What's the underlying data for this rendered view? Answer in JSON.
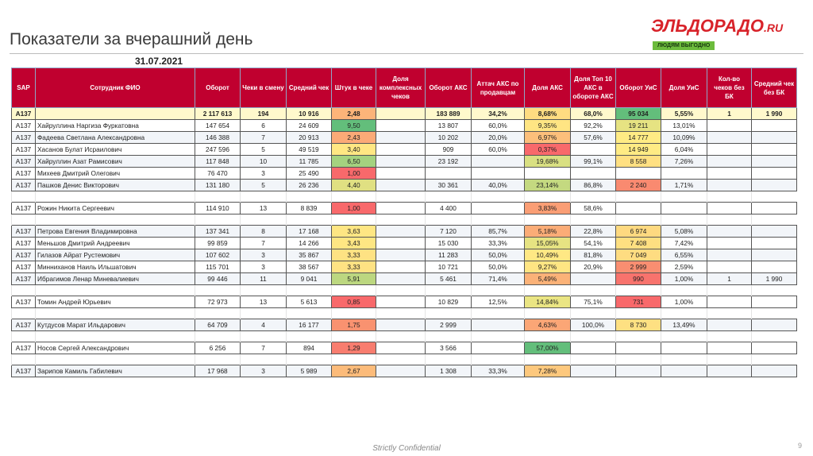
{
  "title": "Показатели за вчерашний день",
  "date": "31.07.2021",
  "logo": {
    "name": "ЭЛЬДОРАДО",
    "suffix": ".RU",
    "tagline": "ЛЮДЯМ ВЫГОДНО"
  },
  "headers": [
    "SAP",
    "Сотрудник ФИО",
    "Оборот",
    "Чеки в смену",
    "Средний чек",
    "Штук в чеке",
    "Доля комплексных чеков",
    "Оборот АКС",
    "Аттач АКС по продавцам",
    "Доля АКС",
    "Доля Топ 10 АКС в обороте АКС",
    "Оборот УиС",
    "Доля УиС",
    "Кол-во чеков без БК",
    "Средний чек без БК"
  ],
  "groups": [
    [
      {
        "total": true,
        "v": [
          "A137",
          "",
          "2 117 613",
          "194",
          "10 916",
          "2,48",
          "",
          "183 889",
          "34,2%",
          "8,68%",
          "68,0%",
          "95 034",
          "5,55%",
          "1",
          "1 990"
        ],
        "c": {
          "5": "#fcb479",
          "9": "#fedc81",
          "11": "#63be7b"
        }
      },
      {
        "v": [
          "A137",
          "Хайруллина Наргиза Фуркатовна",
          "147 654",
          "6",
          "24 609",
          "9,50",
          "",
          "13 807",
          "60,0%",
          "9,35%",
          "92,2%",
          "19 211",
          "13,01%",
          "",
          ""
        ],
        "c": {
          "5": "#63be7b",
          "9": "#ffe583",
          "11": "#e6e382"
        }
      },
      {
        "v": [
          "A137",
          "Фадеева Светлана Александровна",
          "146 388",
          "7",
          "20 913",
          "2,43",
          "",
          "10 202",
          "20,0%",
          "6,97%",
          "57,6%",
          "14 777",
          "10,09%",
          "",
          ""
        ],
        "c": {
          "5": "#fbaa77",
          "9": "#fcbf7b",
          "11": "#ffeb84"
        }
      },
      {
        "v": [
          "A137",
          "Хасанов Булат Исраилович",
          "247 596",
          "5",
          "49 519",
          "3,40",
          "",
          "909",
          "60,0%",
          "0,37%",
          "",
          "14 949",
          "6,04%",
          "",
          ""
        ],
        "c": {
          "5": "#ffe783",
          "9": "#f8696b",
          "11": "#ffeb84"
        }
      },
      {
        "v": [
          "A137",
          "Хайруллин Азат Рамисович",
          "117 848",
          "10",
          "11 785",
          "6,50",
          "",
          "23 192",
          "",
          "19,68%",
          "99,1%",
          "8 558",
          "7,26%",
          "",
          ""
        ],
        "c": {
          "5": "#a4d27f",
          "9": "#d9e082",
          "11": "#ffe082"
        }
      },
      {
        "v": [
          "A137",
          "Михеев Дмитрий Олегович",
          "76 470",
          "3",
          "25 490",
          "1,00",
          "",
          "",
          "",
          "",
          "",
          "",
          "",
          "",
          ""
        ],
        "c": {
          "5": "#f8696b"
        }
      },
      {
        "v": [
          "A137",
          "Пашков Денис Викторович",
          "131 180",
          "5",
          "26 236",
          "4,40",
          "",
          "30 361",
          "40,0%",
          "23,14%",
          "86,8%",
          "2 240",
          "1,71%",
          "",
          ""
        ],
        "c": {
          "5": "#e0e082",
          "9": "#c4d980",
          "11": "#f98a70"
        }
      }
    ],
    [
      {
        "v": [
          "A137",
          "Рожин Никита Сергеевич",
          "114 910",
          "13",
          "8 839",
          "1,00",
          "",
          "4 400",
          "",
          "3,83%",
          "58,6%",
          "",
          "",
          "",
          ""
        ],
        "c": {
          "5": "#f8696b",
          "9": "#fa9e75"
        }
      }
    ],
    [
      {
        "v": [
          "A137",
          "Петрова Евгения Владимировна",
          "137 341",
          "8",
          "17 168",
          "3,63",
          "",
          "7 120",
          "85,7%",
          "5,18%",
          "22,8%",
          "6 974",
          "5,08%",
          "",
          ""
        ],
        "c": {
          "5": "#fee683",
          "9": "#fbac77",
          "11": "#fed980"
        }
      },
      {
        "v": [
          "A137",
          "Меньшов Дмитрий Андреевич",
          "99 859",
          "7",
          "14 266",
          "3,43",
          "",
          "15 030",
          "33,3%",
          "15,05%",
          "54,1%",
          "7 408",
          "7,42%",
          "",
          ""
        ],
        "c": {
          "5": "#fee683",
          "9": "#e6e382",
          "11": "#fedf81"
        }
      },
      {
        "v": [
          "A137",
          "Гилазов Айрат Рустемович",
          "107 602",
          "3",
          "35 867",
          "3,33",
          "",
          "11 283",
          "50,0%",
          "10,49%",
          "81,8%",
          "7 049",
          "6,55%",
          "",
          ""
        ],
        "c": {
          "5": "#fee283",
          "9": "#ffe884",
          "11": "#fedc81"
        }
      },
      {
        "v": [
          "A137",
          "Минниханов Наиль Ильшатович",
          "115 701",
          "3",
          "38 567",
          "3,33",
          "",
          "10 721",
          "50,0%",
          "9,27%",
          "20,9%",
          "2 999",
          "2,59%",
          "",
          ""
        ],
        "c": {
          "5": "#fee283",
          "9": "#ffe583",
          "11": "#f98e71"
        }
      },
      {
        "v": [
          "A137",
          "Ибрагимов Ленар Миневалиевич",
          "99 446",
          "11",
          "9 041",
          "5,91",
          "",
          "5 461",
          "71,4%",
          "5,49%",
          "",
          "990",
          "1,00%",
          "1",
          "1 990"
        ],
        "c": {
          "5": "#bcd780",
          "9": "#fbb278",
          "11": "#f8736d"
        }
      }
    ],
    [
      {
        "v": [
          "A137",
          "Томин Андрей Юрьевич",
          "72 973",
          "13",
          "5 613",
          "0,85",
          "",
          "10 829",
          "12,5%",
          "14,84%",
          "75,1%",
          "731",
          "1,00%",
          "",
          ""
        ],
        "c": {
          "5": "#f8696b",
          "9": "#eae583",
          "11": "#f8696b"
        }
      }
    ],
    [
      {
        "v": [
          "A137",
          "Кутдусов Марат Ильдарович",
          "64 709",
          "4",
          "16 177",
          "1,75",
          "",
          "2 999",
          "",
          "4,63%",
          "100,0%",
          "8 730",
          "13,49%",
          "",
          ""
        ],
        "c": {
          "5": "#f99270",
          "9": "#fba676",
          "11": "#fee082"
        }
      }
    ],
    [
      {
        "v": [
          "A137",
          "Носов Сергей Александрович",
          "6 256",
          "7",
          "894",
          "1,29",
          "",
          "3 566",
          "",
          "57,00%",
          "",
          "",
          "",
          "",
          ""
        ],
        "c": {
          "5": "#f87d6f",
          "9": "#63be7b"
        }
      }
    ],
    [
      {
        "v": [
          "A137",
          "Зарипов Камиль Габилевич",
          "17 968",
          "3",
          "5 989",
          "2,67",
          "",
          "1 308",
          "33,3%",
          "7,28%",
          "",
          "",
          "",
          "",
          ""
        ],
        "c": {
          "5": "#fcbb7a",
          "9": "#fdc87d"
        }
      }
    ]
  ],
  "footer": "Strictly Confidential",
  "page_number": "9"
}
